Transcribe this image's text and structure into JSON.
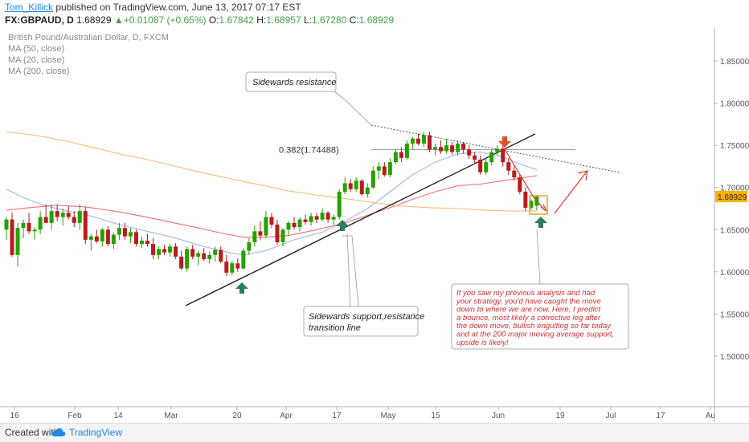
{
  "header": {
    "author": "Tom_Killick",
    "published": "published on TradingView.com, June 13, 2017 07:17 EST",
    "symbol": "FX:GBPAUD, D",
    "price": "1.68929",
    "arrow": "▲",
    "change": "+0.01087 (+0.65%)",
    "o_label": "O:",
    "o_value": "1.67842",
    "h_label": "H:",
    "h_value": "1.68957",
    "l_label": "L:",
    "l_value": "1.67280",
    "c_label": "C:",
    "c_value": "1.68929"
  },
  "legend": {
    "title": "British Pound/Australian Dollar, D, FXCM",
    "ma50": "MA (50, close)",
    "ma20": "MA (20, close)",
    "ma200": "MA (200, close)"
  },
  "footer": {
    "created": "Created with",
    "brand": "TradingView"
  },
  "colors": {
    "bull": "#26a000",
    "bear": "#b71c1c",
    "ma20": "#9fb7ee",
    "ma50": "#f27070",
    "ma200": "#f8bd78",
    "accent": "#1e88e5"
  },
  "chart_data": {
    "type": "candlestick",
    "instrument": "GBPAUD",
    "ylim": [
      1.44,
      1.89
    ],
    "y_ticks": [
      "1.50000",
      "1.55000",
      "1.60000",
      "1.65000",
      "1.70000",
      "1.75000",
      "1.80000",
      "1.85000"
    ],
    "x_ticks": [
      "16",
      "Feb",
      "14",
      "Mar",
      "20",
      "Apr",
      "17",
      "May",
      "15",
      "Jun",
      "19",
      "Jul",
      "17",
      "Au"
    ],
    "last_price_label": "1.68929",
    "fib_label": "0.382(1.74488)",
    "fib_level": 1.74488,
    "candles": [
      [
        1.65,
        1.665,
        1.638,
        1.662
      ],
      [
        1.662,
        1.67,
        1.618,
        1.62
      ],
      [
        1.62,
        1.658,
        1.606,
        1.652
      ],
      [
        1.652,
        1.662,
        1.64,
        1.658
      ],
      [
        1.658,
        1.67,
        1.645,
        1.648
      ],
      [
        1.648,
        1.653,
        1.638,
        1.65
      ],
      [
        1.65,
        1.672,
        1.645,
        1.665
      ],
      [
        1.665,
        1.68,
        1.658,
        1.658
      ],
      [
        1.658,
        1.68,
        1.65,
        1.672
      ],
      [
        1.672,
        1.68,
        1.66,
        1.665
      ],
      [
        1.665,
        1.675,
        1.655,
        1.67
      ],
      [
        1.67,
        1.678,
        1.662,
        1.665
      ],
      [
        1.665,
        1.672,
        1.653,
        1.658
      ],
      [
        1.658,
        1.68,
        1.65,
        1.672
      ],
      [
        1.672,
        1.677,
        1.633,
        1.638
      ],
      [
        1.638,
        1.645,
        1.625,
        1.642
      ],
      [
        1.642,
        1.65,
        1.634,
        1.636
      ],
      [
        1.636,
        1.652,
        1.63,
        1.65
      ],
      [
        1.65,
        1.654,
        1.63,
        1.633
      ],
      [
        1.633,
        1.647,
        1.627,
        1.644
      ],
      [
        1.644,
        1.658,
        1.638,
        1.652
      ],
      [
        1.652,
        1.658,
        1.638,
        1.642
      ],
      [
        1.642,
        1.652,
        1.634,
        1.647
      ],
      [
        1.647,
        1.65,
        1.63,
        1.633
      ],
      [
        1.633,
        1.642,
        1.628,
        1.637
      ],
      [
        1.637,
        1.645,
        1.63,
        1.633
      ],
      [
        1.633,
        1.64,
        1.615,
        1.62
      ],
      [
        1.62,
        1.63,
        1.615,
        1.627
      ],
      [
        1.627,
        1.632,
        1.62,
        1.623
      ],
      [
        1.623,
        1.633,
        1.618,
        1.63
      ],
      [
        1.63,
        1.634,
        1.615,
        1.618
      ],
      [
        1.618,
        1.625,
        1.602,
        1.604
      ],
      [
        1.604,
        1.63,
        1.6,
        1.627
      ],
      [
        1.627,
        1.632,
        1.615,
        1.618
      ],
      [
        1.618,
        1.625,
        1.608,
        1.622
      ],
      [
        1.622,
        1.628,
        1.613,
        1.615
      ],
      [
        1.615,
        1.624,
        1.61,
        1.62
      ],
      [
        1.62,
        1.63,
        1.612,
        1.626
      ],
      [
        1.626,
        1.63,
        1.61,
        1.612
      ],
      [
        1.612,
        1.62,
        1.595,
        1.599
      ],
      [
        1.599,
        1.613,
        1.596,
        1.61
      ],
      [
        1.61,
        1.616,
        1.6,
        1.604
      ],
      [
        1.604,
        1.628,
        1.603,
        1.625
      ],
      [
        1.625,
        1.64,
        1.62,
        1.635
      ],
      [
        1.635,
        1.655,
        1.63,
        1.648
      ],
      [
        1.648,
        1.66,
        1.638,
        1.643
      ],
      [
        1.643,
        1.672,
        1.64,
        1.665
      ],
      [
        1.665,
        1.67,
        1.652,
        1.656
      ],
      [
        1.656,
        1.662,
        1.632,
        1.635
      ],
      [
        1.635,
        1.652,
        1.63,
        1.65
      ],
      [
        1.65,
        1.66,
        1.642,
        1.658
      ],
      [
        1.658,
        1.665,
        1.65,
        1.653
      ],
      [
        1.653,
        1.665,
        1.648,
        1.662
      ],
      [
        1.662,
        1.668,
        1.656,
        1.659
      ],
      [
        1.659,
        1.67,
        1.655,
        1.666
      ],
      [
        1.666,
        1.67,
        1.658,
        1.662
      ],
      [
        1.662,
        1.675,
        1.66,
        1.67
      ],
      [
        1.67,
        1.672,
        1.658,
        1.662
      ],
      [
        1.662,
        1.668,
        1.656,
        1.665
      ],
      [
        1.665,
        1.698,
        1.662,
        1.695
      ],
      [
        1.695,
        1.712,
        1.692,
        1.705
      ],
      [
        1.705,
        1.71,
        1.695,
        1.698
      ],
      [
        1.698,
        1.712,
        1.695,
        1.708
      ],
      [
        1.708,
        1.71,
        1.69,
        1.692
      ],
      [
        1.692,
        1.705,
        1.688,
        1.7
      ],
      [
        1.7,
        1.725,
        1.698,
        1.72
      ],
      [
        1.72,
        1.73,
        1.71,
        1.725
      ],
      [
        1.725,
        1.73,
        1.713,
        1.715
      ],
      [
        1.715,
        1.735,
        1.712,
        1.73
      ],
      [
        1.73,
        1.745,
        1.728,
        1.742
      ],
      [
        1.742,
        1.748,
        1.73,
        1.735
      ],
      [
        1.735,
        1.756,
        1.733,
        1.752
      ],
      [
        1.752,
        1.76,
        1.745,
        1.758
      ],
      [
        1.758,
        1.764,
        1.75,
        1.752
      ],
      [
        1.752,
        1.766,
        1.748,
        1.762
      ],
      [
        1.762,
        1.766,
        1.742,
        1.745
      ],
      [
        1.745,
        1.752,
        1.738,
        1.748
      ],
      [
        1.748,
        1.756,
        1.74,
        1.743
      ],
      [
        1.743,
        1.758,
        1.74,
        1.75
      ],
      [
        1.75,
        1.754,
        1.739,
        1.742
      ],
      [
        1.742,
        1.756,
        1.738,
        1.752
      ],
      [
        1.752,
        1.754,
        1.74,
        1.745
      ],
      [
        1.745,
        1.75,
        1.734,
        1.738
      ],
      [
        1.738,
        1.742,
        1.728,
        1.733
      ],
      [
        1.733,
        1.738,
        1.715,
        1.718
      ],
      [
        1.718,
        1.735,
        1.715,
        1.73
      ],
      [
        1.73,
        1.745,
        1.726,
        1.742
      ],
      [
        1.742,
        1.75,
        1.738,
        1.746
      ],
      [
        1.746,
        1.75,
        1.725,
        1.73
      ],
      [
        1.73,
        1.735,
        1.715,
        1.72
      ],
      [
        1.72,
        1.725,
        1.708,
        1.712
      ],
      [
        1.712,
        1.715,
        1.692,
        1.695
      ],
      [
        1.695,
        1.7,
        1.672,
        1.676
      ],
      [
        1.676,
        1.686,
        1.673,
        1.684
      ],
      [
        1.6784,
        1.6896,
        1.6728,
        1.6893
      ]
    ],
    "series": [
      {
        "name": "MA (20, close)",
        "values": [
          [
            0,
            1.698
          ],
          [
            3,
            1.688
          ],
          [
            7,
            1.678
          ],
          [
            11,
            1.672
          ],
          [
            15,
            1.666
          ],
          [
            20,
            1.656
          ],
          [
            25,
            1.648
          ],
          [
            30,
            1.64
          ],
          [
            35,
            1.63
          ],
          [
            40,
            1.622
          ],
          [
            42,
            1.62
          ],
          [
            46,
            1.625
          ],
          [
            51,
            1.638
          ],
          [
            56,
            1.647
          ],
          [
            60,
            1.66
          ],
          [
            64,
            1.675
          ],
          [
            68,
            1.695
          ],
          [
            72,
            1.715
          ],
          [
            76,
            1.73
          ],
          [
            80,
            1.74
          ],
          [
            84,
            1.742
          ],
          [
            88,
            1.736
          ],
          [
            91,
            1.728
          ],
          [
            94,
            1.721
          ]
        ]
      },
      {
        "name": "MA (50, close)",
        "values": [
          [
            0,
            1.673
          ],
          [
            4,
            1.676
          ],
          [
            9,
            1.679
          ],
          [
            14,
            1.677
          ],
          [
            19,
            1.672
          ],
          [
            24,
            1.666
          ],
          [
            29,
            1.659
          ],
          [
            34,
            1.652
          ],
          [
            38,
            1.646
          ],
          [
            42,
            1.641
          ],
          [
            46,
            1.641
          ],
          [
            50,
            1.643
          ],
          [
            55,
            1.65
          ],
          [
            60,
            1.658
          ],
          [
            64,
            1.667
          ],
          [
            68,
            1.676
          ],
          [
            72,
            1.686
          ],
          [
            76,
            1.695
          ],
          [
            80,
            1.702
          ],
          [
            84,
            1.704
          ],
          [
            88,
            1.708
          ],
          [
            91,
            1.711
          ],
          [
            94,
            1.714
          ]
        ]
      },
      {
        "name": "MA (200, close)",
        "values": [
          [
            0,
            1.766
          ],
          [
            5,
            1.762
          ],
          [
            10,
            1.756
          ],
          [
            15,
            1.748
          ],
          [
            20,
            1.74
          ],
          [
            25,
            1.733
          ],
          [
            30,
            1.725
          ],
          [
            35,
            1.717
          ],
          [
            40,
            1.71
          ],
          [
            45,
            1.703
          ],
          [
            50,
            1.696
          ],
          [
            55,
            1.691
          ],
          [
            60,
            1.687
          ],
          [
            65,
            1.682
          ],
          [
            70,
            1.678
          ],
          [
            75,
            1.676
          ],
          [
            80,
            1.675
          ],
          [
            85,
            1.673
          ],
          [
            90,
            1.672
          ],
          [
            94,
            1.672
          ]
        ]
      }
    ],
    "annotations": {
      "sidewards_resistance": "Sidewards resistance",
      "sidewards_support": "Sidewards support,resistance",
      "transition_line": "transition line",
      "note_lines": [
        "If you saw my previous analysis and had",
        "your strategy, you'd have caught the move",
        "down to where we are now. Here, I predict",
        "a bounce, most likely a corrective leg after",
        "the down move, bullish engulfing so far today",
        "and at the 200 major moving average support,",
        "upside is likely!"
      ]
    }
  }
}
